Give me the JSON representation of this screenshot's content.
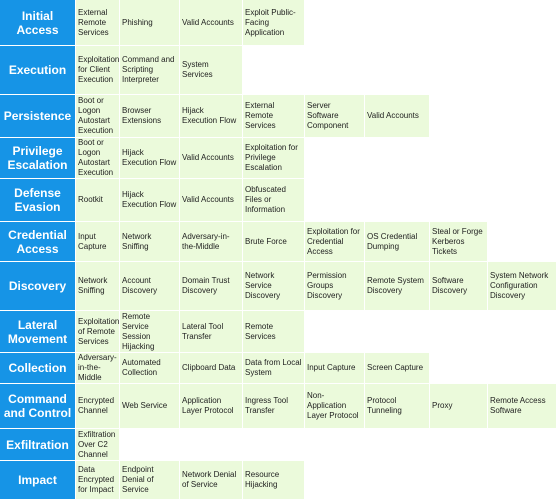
{
  "colors": {
    "tactic_bg": "#1694e6",
    "technique_bg": "#ebfadb",
    "tactic_text": "#ffffff"
  },
  "rows": [
    {
      "tactic": "Initial Access",
      "techniques": [
        "External Remote Services",
        "Phishing",
        "Valid Accounts",
        "Exploit Public-Facing Application"
      ]
    },
    {
      "tactic": "Execution",
      "techniques": [
        "Exploitation for Client Execution",
        "Command and Scripting Interpreter",
        "System Services"
      ]
    },
    {
      "tactic": "Persistence",
      "techniques": [
        "Boot or Logon Autostart Execution",
        "Browser Extensions",
        "Hijack Execution Flow",
        "External Remote Services",
        "Server Software Component",
        "Valid Accounts"
      ]
    },
    {
      "tactic": "Privilege Escalation",
      "techniques": [
        "Boot or Logon Autostart Execution",
        "Hijack Execution Flow",
        "Valid Accounts",
        "Exploitation for Privilege Escalation"
      ]
    },
    {
      "tactic": "Defense Evasion",
      "techniques": [
        "Rootkit",
        "Hijack Execution Flow",
        "Valid Accounts",
        "Obfuscated Files or Information"
      ]
    },
    {
      "tactic": "Credential Access",
      "techniques": [
        "Input Capture",
        "Network Sniffing",
        "Adversary-in-the-Middle",
        "Brute Force",
        "Exploitation for Credential Access",
        "OS Credential Dumping",
        "Steal or Forge Kerberos Tickets"
      ]
    },
    {
      "tactic": "Discovery",
      "techniques": [
        "Network Sniffing",
        "Account Discovery",
        "Domain Trust Discovery",
        "Network Service Discovery",
        "Permission Groups Discovery",
        "Remote System Discovery",
        "Software Discovery",
        "System Network Configuration Discovery"
      ]
    },
    {
      "tactic": "Lateral Movement",
      "techniques": [
        "Exploitation of Remote Services",
        "Remote Service Session Hijacking",
        "Lateral Tool Transfer",
        "Remote Services"
      ]
    },
    {
      "tactic": "Collection",
      "techniques": [
        "Adversary-in-the-Middle",
        "Automated Collection",
        "Clipboard Data",
        "Data from Local System",
        "Input Capture",
        "Screen Capture"
      ]
    },
    {
      "tactic": "Command and Control",
      "techniques": [
        "Encrypted Channel",
        "Web Service",
        "Application Layer Protocol",
        "Ingress Tool Transfer",
        "Non-Application Layer Protocol",
        "Protocol Tunneling",
        "Proxy",
        "Remote Access Software"
      ]
    },
    {
      "tactic": "Exfiltration",
      "techniques": [
        "Exfiltration Over C2 Channel"
      ]
    },
    {
      "tactic": "Impact",
      "techniques": [
        "Data Encrypted for Impact",
        "Endpoint Denial of Service",
        "Network Denial of Service",
        "Resource Hijacking"
      ]
    }
  ]
}
